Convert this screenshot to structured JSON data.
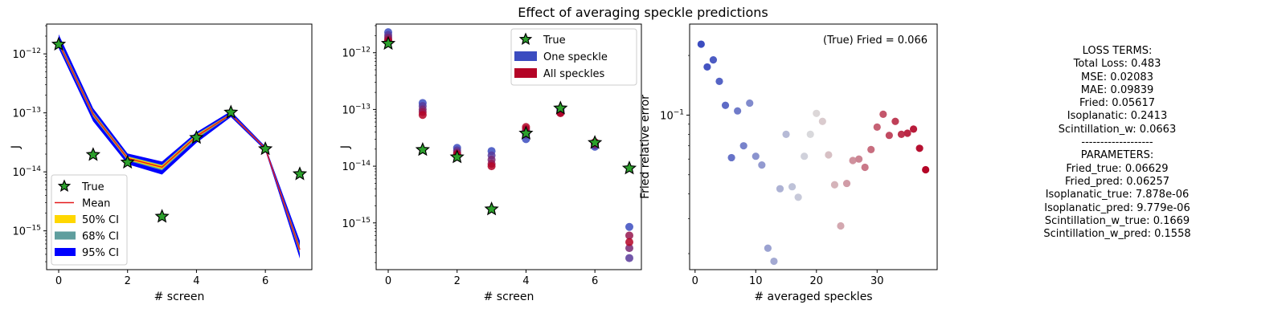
{
  "title": "Effect of averaging speckle predictions",
  "chart_data": [
    {
      "type": "line",
      "xlabel": "# screen",
      "ylabel": "J",
      "yscale": "log",
      "xlim": [
        -0.35,
        7.35
      ],
      "ylim": [
        2.2e-16,
        3.2e-12
      ],
      "xticks": [
        0,
        2,
        4,
        6
      ],
      "yticks": [
        "10^-12",
        "10^-13",
        "10^-14",
        "10^-15"
      ],
      "legend_position": "lower-left",
      "true": {
        "name": "True",
        "x": [
          0,
          1,
          2,
          3,
          4,
          5,
          6,
          7
        ],
        "values": [
          1.45e-12,
          1.95e-14,
          1.45e-14,
          1.75e-15,
          3.8e-14,
          1.02e-13,
          2.45e-14,
          9.2e-15
        ]
      },
      "mean": {
        "name": "Mean",
        "x": [
          0,
          1,
          2,
          3,
          4,
          5,
          6,
          7
        ],
        "values": [
          1.55e-12,
          9.5e-14,
          1.7e-14,
          1.2e-14,
          4e-14,
          9.4e-14,
          2.5e-14,
          4.8e-16
        ]
      },
      "bands": [
        {
          "name": "95% CI",
          "color": "#0000ff",
          "low": [
            1.25e-12,
            7.2e-14,
            1.35e-14,
            9e-15,
            3.1e-14,
            8.5e-14,
            2.3e-14,
            3.4e-16
          ],
          "high": [
            2.15e-12,
            1.2e-13,
            2.05e-14,
            1.5e-14,
            4.7e-14,
            1.07e-13,
            2.7e-14,
            6.8e-16
          ]
        },
        {
          "name": "68% CI",
          "color": "#5f9e9e",
          "low": [
            1.4e-12,
            8.6e-14,
            1.55e-14,
            1.06e-14,
            3.6e-14,
            9e-14,
            2.42e-14,
            4.1e-16
          ],
          "high": [
            1.75e-12,
            1.05e-13,
            1.85e-14,
            1.32e-14,
            4.4e-14,
            9.9e-14,
            2.6e-14,
            5.6e-16
          ]
        },
        {
          "name": "50% CI",
          "color": "#ffd700",
          "low": [
            1.47e-12,
            9e-14,
            1.6e-14,
            1.12e-14,
            3.8e-14,
            9.2e-14,
            2.46e-14,
            4.4e-16
          ],
          "high": [
            1.65e-12,
            1e-13,
            1.8e-14,
            1.28e-14,
            4.25e-14,
            9.7e-14,
            2.56e-14,
            5.2e-16
          ]
        }
      ],
      "legend": [
        "True",
        "Mean",
        "50% CI",
        "68% CI",
        "95% CI"
      ]
    },
    {
      "type": "scatter",
      "xlabel": "# screen",
      "ylabel": "J",
      "yscale": "log",
      "xlim": [
        -0.35,
        7.35
      ],
      "ylim": [
        1.5e-16,
        3.2e-12
      ],
      "xticks": [
        0,
        2,
        4,
        6
      ],
      "yticks": [
        "10^-12",
        "10^-13",
        "10^-14",
        "10^-15"
      ],
      "legend_position": "top-right",
      "legend": [
        "True",
        "One speckle",
        "All speckles"
      ],
      "colorscale": [
        "#3b4cc0",
        "#b40426"
      ],
      "true": {
        "x": [
          0,
          1,
          2,
          3,
          4,
          5,
          6,
          7
        ],
        "values": [
          1.45e-12,
          1.95e-14,
          1.45e-14,
          1.75e-15,
          3.8e-14,
          1.05e-13,
          2.6e-14,
          9.2e-15
        ]
      },
      "speckles": {
        "x": [
          0,
          1,
          2,
          3,
          4,
          5,
          6,
          7
        ],
        "groups": [
          [
            2.3e-12,
            2.05e-12,
            1.85e-12,
            1.7e-12,
            1.6e-12
          ],
          [
            1.3e-13,
            1.15e-13,
            1e-13,
            9e-14,
            8e-14
          ],
          [
            2.1e-14,
            1.9e-14,
            1.75e-14,
            1.65e-14,
            1.6e-14
          ],
          [
            1.85e-14,
            1.55e-14,
            1.3e-14,
            1.1e-14,
            1e-14
          ],
          [
            3e-14,
            3.6e-14,
            4.1e-14,
            4.5e-14,
            4.9e-14
          ],
          [
            1e-13,
            9.5e-14,
            9.1e-14,
            8.8e-14,
            8.6e-14
          ],
          [
            2.2e-14,
            2.35e-14,
            2.45e-14,
            2.55e-14,
            2.65e-14
          ],
          [
            8.5e-16,
            2.4e-16,
            3.6e-16,
            6e-16,
            4.6e-16
          ]
        ]
      }
    },
    {
      "type": "scatter",
      "xlabel": "# averaged speckles",
      "ylabel": "Fried relative error",
      "yscale": "log",
      "xlim": [
        -0.9,
        39.9
      ],
      "ylim": [
        0.0166,
        0.288
      ],
      "xticks": [
        0,
        10,
        20,
        30
      ],
      "yticks": [
        "10^-1"
      ],
      "annotation": "(True) Fried = 0.066",
      "colorscale": [
        "#3b4cc0",
        "#dddddd",
        "#b40426"
      ],
      "x": [
        1,
        2,
        3,
        4,
        5,
        6,
        7,
        8,
        9,
        10,
        11,
        12,
        13,
        14,
        15,
        16,
        17,
        18,
        19,
        20,
        21,
        22,
        23,
        24,
        25,
        26,
        27,
        28,
        29,
        30,
        31,
        32,
        33,
        34,
        35,
        36,
        37,
        38
      ],
      "values": [
        0.228,
        0.175,
        0.19,
        0.148,
        0.112,
        0.061,
        0.105,
        0.07,
        0.115,
        0.062,
        0.056,
        0.0213,
        0.0183,
        0.0425,
        0.08,
        0.0435,
        0.0385,
        0.062,
        0.08,
        0.102,
        0.093,
        0.063,
        0.0445,
        0.0276,
        0.0452,
        0.059,
        0.06,
        0.0545,
        0.067,
        0.087,
        0.101,
        0.079,
        0.093,
        0.08,
        0.081,
        0.085,
        0.068,
        0.053
      ]
    }
  ],
  "loss_text": {
    "lines": [
      "LOSS TERMS:",
      "Total Loss: 0.483",
      "MSE: 0.02083",
      "MAE: 0.09839",
      "Fried: 0.05617",
      "Isoplanatic: 0.2413",
      "Scintillation_w: 0.0663",
      "-------------------",
      "PARAMETERS:",
      "Fried_true: 0.06629",
      "Fried_pred: 0.06257",
      "Isoplanatic_true: 7.878e-06",
      "Isoplanatic_pred: 9.779e-06",
      "Scintillation_w_true: 0.1669",
      "Scintillation_w_pred: 0.1558"
    ]
  }
}
